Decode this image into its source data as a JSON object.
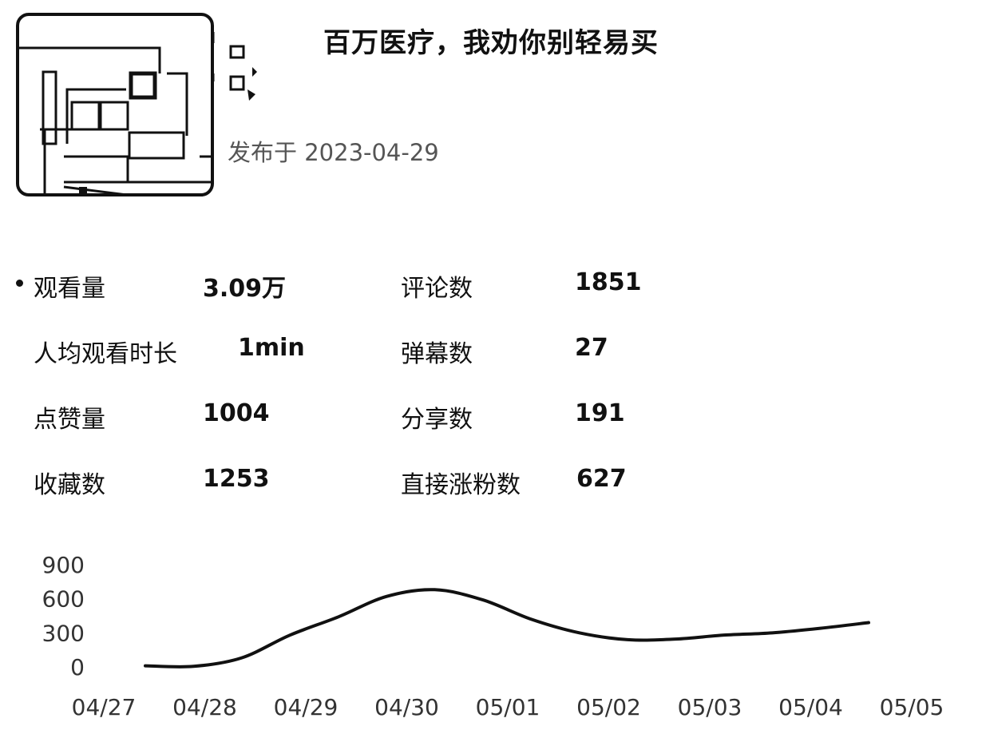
{
  "video": {
    "title": "百万医疗，我劝你别轻易买",
    "publish_date": "发布于 2023-04-29",
    "thumbnail_icon": "floorplan-thumbnail-icon"
  },
  "stats": [
    {
      "label": "观看量",
      "value": "3.09万"
    },
    {
      "label": "评论数",
      "value": "1851"
    },
    {
      "label": "人均观看时长",
      "value": "1min"
    },
    {
      "label": "弹幕数",
      "value": "27"
    },
    {
      "label": "点赞量",
      "value": "1004"
    },
    {
      "label": "分享数",
      "value": "191"
    },
    {
      "label": "收藏数",
      "value": "1253"
    },
    {
      "label": "直接涨粉数",
      "value": "627"
    }
  ],
  "chart_data": {
    "type": "line",
    "categories": [
      "04/27",
      "04/28",
      "04/29",
      "04/30",
      "05/01",
      "05/02",
      "05/03",
      "05/04",
      "05/05"
    ],
    "x": [
      "04/27",
      "04/27.5",
      "04/28",
      "04/28.5",
      "04/29",
      "04/29.5",
      "04/30",
      "04/30.5",
      "05/01",
      "05/01.5",
      "05/02",
      "05/02.5",
      "05/03",
      "05/03.5",
      "05/04",
      "05/04.5"
    ],
    "values": [
      10,
      5,
      80,
      280,
      440,
      620,
      680,
      590,
      420,
      300,
      240,
      245,
      280,
      300,
      340,
      390
    ],
    "yticks": [
      "0",
      "300",
      "600",
      "900"
    ],
    "ylim": [
      0,
      900
    ],
    "line_color": "#111111",
    "grid": false
  }
}
